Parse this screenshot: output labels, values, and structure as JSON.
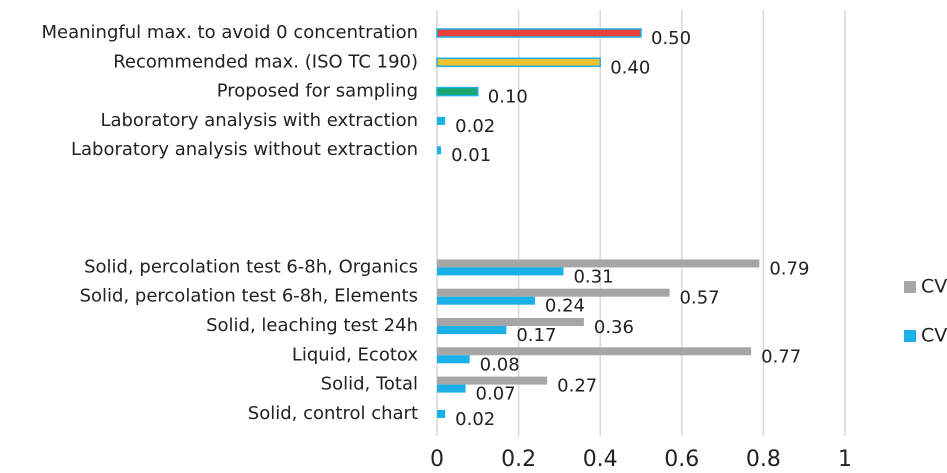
{
  "chart_data": {
    "type": "barh",
    "categories": [
      "Meaningful max. to avoid 0 concentration",
      "Recommended max. (ISO TC 190)",
      "Proposed for sampling",
      "Laboratory analysis with extraction",
      "Laboratory analysis without extraction",
      null,
      null,
      null,
      "Solid, percolation test 6-8h, Organics",
      "Solid, percolation test 6-8h, Elements",
      "Solid, leaching test 24h",
      "Liquid, Ecotox",
      "Solid, Total",
      "Solid, control chart"
    ],
    "series": [
      {
        "name": "CVR",
        "color": "#a6a6a6",
        "values": [
          null,
          null,
          null,
          null,
          null,
          null,
          null,
          null,
          0.79,
          0.57,
          0.36,
          0.77,
          0.27,
          null
        ],
        "value_labels": [
          null,
          null,
          null,
          null,
          null,
          null,
          null,
          null,
          "0.79",
          "0.57",
          "0.36",
          "0.77",
          "0.27",
          null
        ],
        "label_colors": [
          null,
          null,
          null,
          null,
          null,
          null,
          null,
          null,
          "#e8362d",
          "#e8362d",
          "#f0b323",
          "#e8362d",
          "#f0b323",
          null
        ]
      },
      {
        "name": "CVr",
        "color": "#1ab0e8",
        "values": [
          0.5,
          0.4,
          0.1,
          0.02,
          0.01,
          null,
          null,
          null,
          0.31,
          0.24,
          0.17,
          0.08,
          0.07,
          0.02
        ],
        "value_labels": [
          "0.50",
          "0.40",
          "0.10",
          "0.02",
          "0.01",
          null,
          null,
          null,
          "0.31",
          "0.24",
          "0.17",
          "0.08",
          "0.07",
          "0.02"
        ],
        "point_colors": [
          "#e8413c",
          "#f2c12e",
          "#1aa66e",
          "#1ab0e8",
          "#1ab0e8",
          null,
          null,
          null,
          "#1ab0e8",
          "#1ab0e8",
          "#1ab0e8",
          "#1ab0e8",
          "#1ab0e8",
          "#1ab0e8"
        ],
        "label_colors": [
          "#c55a11",
          "#f0b323",
          "#1aa66e",
          "#1aa66e",
          "#1aa66e",
          null,
          null,
          null,
          "#f0b323",
          "#f0b323",
          "#f0b323",
          "#1aa66e",
          "#1aa66e",
          "#1aa66e"
        ]
      }
    ],
    "xlim": [
      0,
      1
    ],
    "xticks": [
      0,
      0.2,
      0.4,
      0.6,
      0.8,
      1
    ],
    "grid": true
  }
}
